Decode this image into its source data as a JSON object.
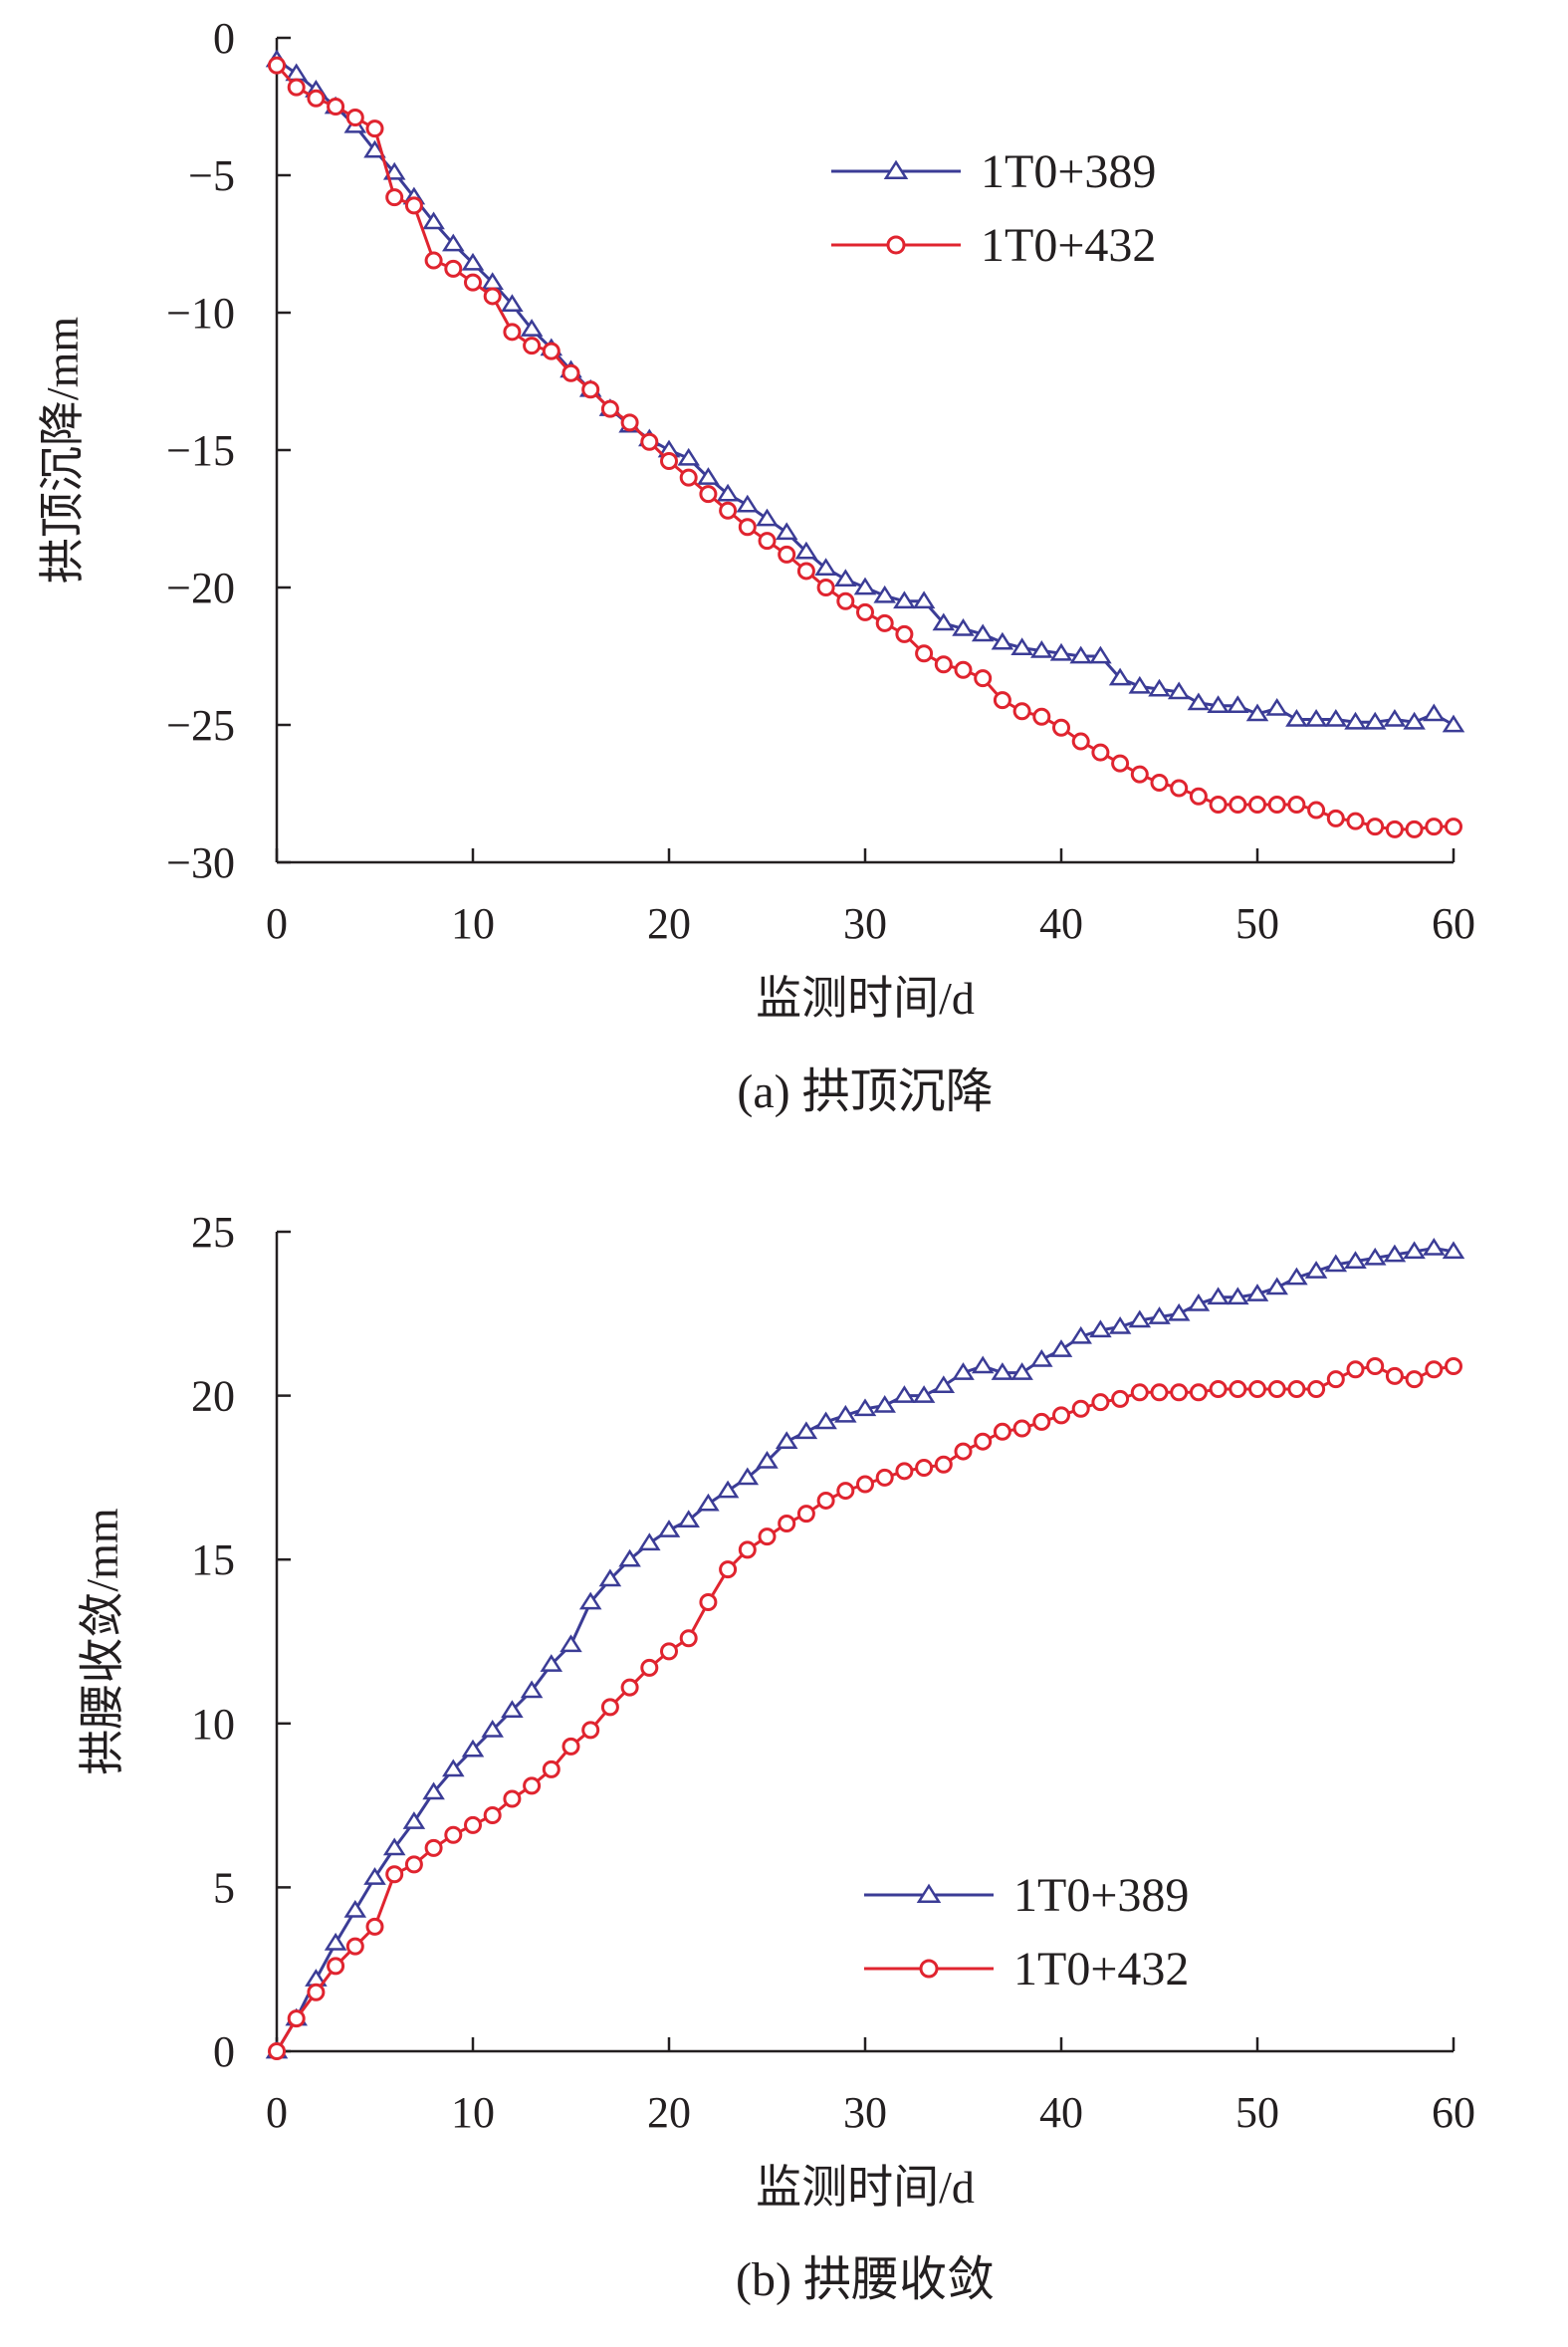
{
  "chart_data": [
    {
      "type": "line",
      "caption": "(a) 拱顶沉降",
      "xlabel": "监测时间/d",
      "ylabel": "拱顶沉降/mm",
      "xlim": [
        0,
        60
      ],
      "ylim": [
        -30,
        0
      ],
      "xticks": [
        0,
        10,
        20,
        30,
        40,
        50,
        60
      ],
      "yticks": [
        0,
        -5,
        -10,
        -15,
        -20,
        -25,
        -30
      ],
      "ytick_labels": [
        "0",
        "−5",
        "−10",
        "−15",
        "−20",
        "−25",
        "−30"
      ],
      "legend_position": "top-right",
      "x": [
        0,
        1,
        2,
        3,
        4,
        5,
        6,
        7,
        8,
        9,
        10,
        11,
        12,
        13,
        14,
        15,
        16,
        17,
        18,
        19,
        20,
        21,
        22,
        23,
        24,
        25,
        26,
        27,
        28,
        29,
        30,
        31,
        32,
        33,
        34,
        35,
        36,
        37,
        38,
        39,
        40,
        41,
        42,
        43,
        44,
        45,
        46,
        47,
        48,
        49,
        50,
        51,
        52,
        53,
        54,
        55,
        56,
        57,
        58,
        59,
        60
      ],
      "series": [
        {
          "name": "1T0+389",
          "color": "#3b3c96",
          "marker": "triangle",
          "values": [
            -0.8,
            -1.3,
            -1.9,
            -2.5,
            -3.2,
            -4.1,
            -4.9,
            -5.8,
            -6.7,
            -7.5,
            -8.2,
            -8.9,
            -9.7,
            -10.6,
            -11.3,
            -12.1,
            -12.8,
            -13.5,
            -14.1,
            -14.6,
            -15.0,
            -15.3,
            -16.0,
            -16.6,
            -17.0,
            -17.5,
            -18.0,
            -18.7,
            -19.3,
            -19.7,
            -20.0,
            -20.3,
            -20.5,
            -20.5,
            -21.3,
            -21.5,
            -21.7,
            -22.0,
            -22.2,
            -22.3,
            -22.4,
            -22.5,
            -22.5,
            -23.3,
            -23.6,
            -23.7,
            -23.8,
            -24.2,
            -24.3,
            -24.3,
            -24.6,
            -24.4,
            -24.8,
            -24.8,
            -24.8,
            -24.9,
            -24.9,
            -24.8,
            -24.9,
            -24.6,
            -25.0
          ]
        },
        {
          "name": "1T0+432",
          "color": "#e0242f",
          "marker": "circle",
          "values": [
            -1.0,
            -1.8,
            -2.2,
            -2.5,
            -2.9,
            -3.3,
            -5.8,
            -6.1,
            -8.1,
            -8.4,
            -8.9,
            -9.4,
            -10.7,
            -11.2,
            -11.4,
            -12.2,
            -12.8,
            -13.5,
            -14.0,
            -14.7,
            -15.4,
            -16.0,
            -16.6,
            -17.2,
            -17.8,
            -18.3,
            -18.8,
            -19.4,
            -20.0,
            -20.5,
            -20.9,
            -21.3,
            -21.7,
            -22.4,
            -22.8,
            -23.0,
            -23.3,
            -24.1,
            -24.5,
            -24.7,
            -25.1,
            -25.6,
            -26.0,
            -26.4,
            -26.8,
            -27.1,
            -27.3,
            -27.6,
            -27.9,
            -27.9,
            -27.9,
            -27.9,
            -27.9,
            -28.1,
            -28.4,
            -28.5,
            -28.7,
            -28.8,
            -28.8,
            -28.7,
            -28.7
          ]
        }
      ]
    },
    {
      "type": "line",
      "caption": "(b) 拱腰收敛",
      "xlabel": "监测时间/d",
      "ylabel": "拱腰收敛/mm",
      "xlim": [
        0,
        60
      ],
      "ylim": [
        0,
        25
      ],
      "xticks": [
        0,
        10,
        20,
        30,
        40,
        50,
        60
      ],
      "yticks": [
        0,
        5,
        10,
        15,
        20,
        25
      ],
      "ytick_labels": [
        "0",
        "5",
        "10",
        "15",
        "20",
        "25"
      ],
      "legend_position": "bottom-right",
      "x": [
        0,
        1,
        2,
        3,
        4,
        5,
        6,
        7,
        8,
        9,
        10,
        11,
        12,
        13,
        14,
        15,
        16,
        17,
        18,
        19,
        20,
        21,
        22,
        23,
        24,
        25,
        26,
        27,
        28,
        29,
        30,
        31,
        32,
        33,
        34,
        35,
        36,
        37,
        38,
        39,
        40,
        41,
        42,
        43,
        44,
        45,
        46,
        47,
        48,
        49,
        50,
        51,
        52,
        53,
        54,
        55,
        56,
        57,
        58,
        59,
        60
      ],
      "series": [
        {
          "name": "1T0+389",
          "color": "#3b3c96",
          "marker": "triangle",
          "values": [
            0.0,
            1.0,
            2.2,
            3.3,
            4.3,
            5.3,
            6.2,
            7.0,
            7.9,
            8.6,
            9.2,
            9.8,
            10.4,
            11.0,
            11.8,
            12.4,
            13.7,
            14.4,
            15.0,
            15.5,
            15.9,
            16.2,
            16.7,
            17.1,
            17.5,
            18.0,
            18.6,
            18.9,
            19.2,
            19.4,
            19.6,
            19.7,
            20.0,
            20.0,
            20.3,
            20.7,
            20.9,
            20.7,
            20.7,
            21.1,
            21.4,
            21.8,
            22.0,
            22.1,
            22.3,
            22.4,
            22.5,
            22.8,
            23.0,
            23.0,
            23.1,
            23.3,
            23.6,
            23.8,
            24.0,
            24.1,
            24.2,
            24.3,
            24.4,
            24.5,
            24.4
          ]
        },
        {
          "name": "1T0+432",
          "color": "#e0242f",
          "marker": "circle",
          "values": [
            0.0,
            1.0,
            1.8,
            2.6,
            3.2,
            3.8,
            5.4,
            5.7,
            6.2,
            6.6,
            6.9,
            7.2,
            7.7,
            8.1,
            8.6,
            9.3,
            9.8,
            10.5,
            11.1,
            11.7,
            12.2,
            12.6,
            13.7,
            14.7,
            15.3,
            15.7,
            16.1,
            16.4,
            16.8,
            17.1,
            17.3,
            17.5,
            17.7,
            17.8,
            17.9,
            18.3,
            18.6,
            18.9,
            19.0,
            19.2,
            19.4,
            19.6,
            19.8,
            19.9,
            20.1,
            20.1,
            20.1,
            20.1,
            20.2,
            20.2,
            20.2,
            20.2,
            20.2,
            20.2,
            20.5,
            20.8,
            20.9,
            20.6,
            20.5,
            20.8,
            20.9
          ]
        }
      ]
    }
  ]
}
